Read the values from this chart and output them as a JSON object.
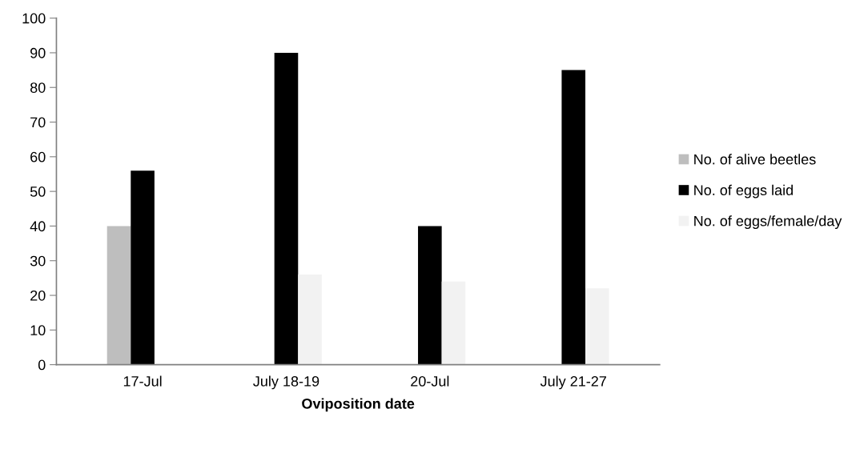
{
  "chart_data": {
    "type": "bar",
    "xlabel": "Oviposition date",
    "categories": [
      "17-Jul",
      "July 18-19",
      "20-Jul",
      "July 21-27"
    ],
    "series": [
      {
        "name": "No. of alive beetles",
        "color": "#bebebe",
        "values": [
          40,
          null,
          null,
          null
        ]
      },
      {
        "name": "No. of eggs laid",
        "color": "#000000",
        "values": [
          56,
          90,
          40,
          85
        ]
      },
      {
        "name": "No. of eggs/female/day",
        "color": "#f2f2f2",
        "values": [
          null,
          26,
          24,
          22
        ]
      }
    ],
    "ylim": [
      0,
      100
    ],
    "yticks": [
      0,
      10,
      20,
      30,
      40,
      50,
      60,
      70,
      80,
      90,
      100
    ],
    "grid": false,
    "legend": "right"
  }
}
